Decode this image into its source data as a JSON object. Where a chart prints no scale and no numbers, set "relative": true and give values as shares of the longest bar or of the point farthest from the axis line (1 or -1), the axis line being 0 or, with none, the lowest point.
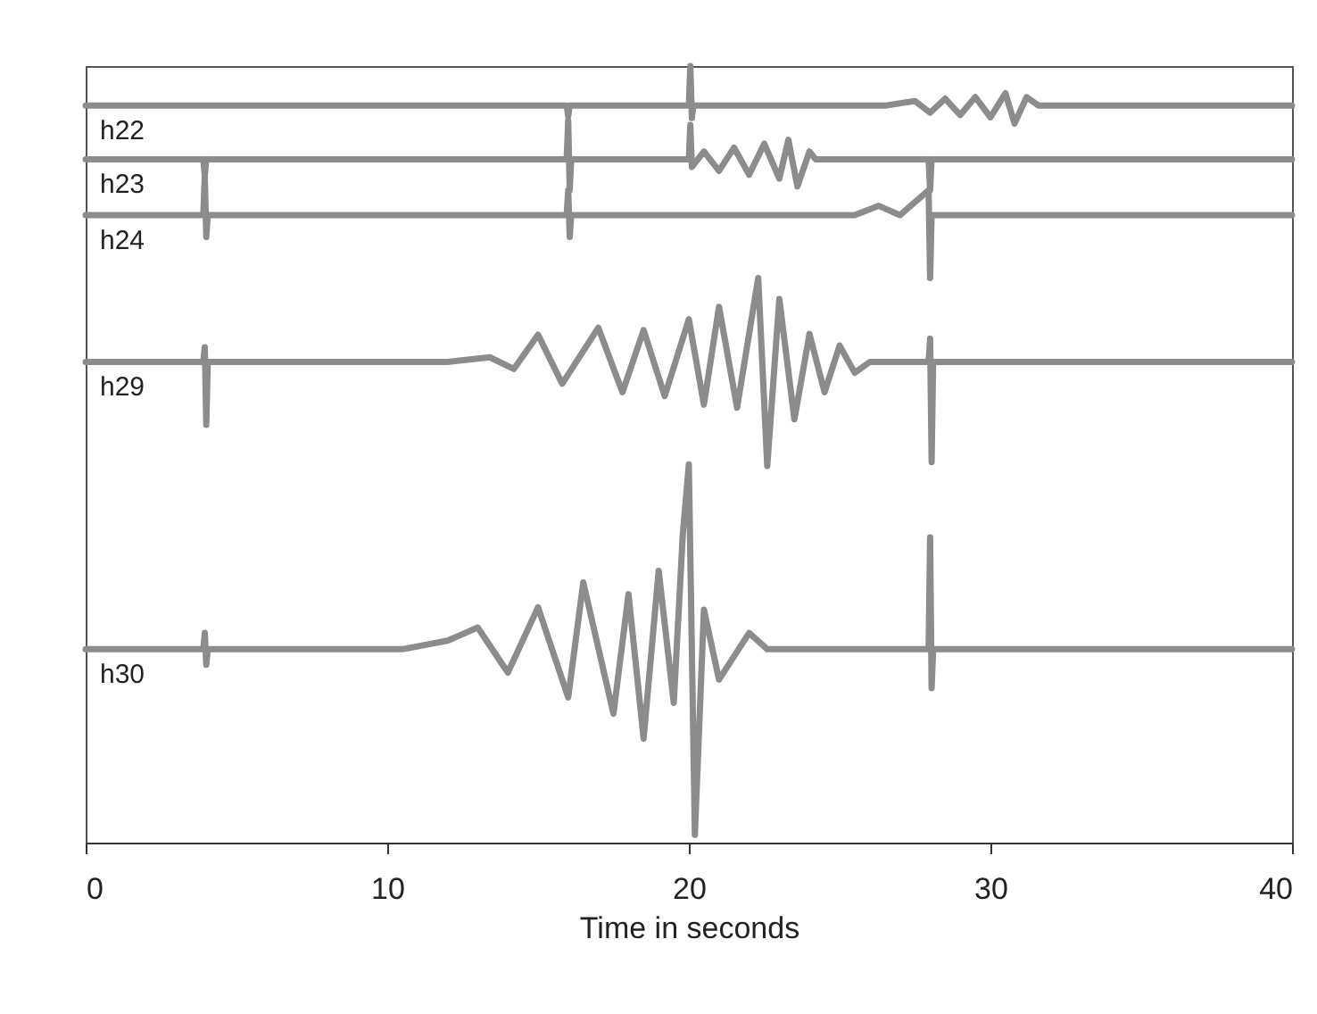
{
  "chart_data": {
    "type": "line",
    "relative": true,
    "xlabel": "Time in seconds",
    "xlim": [
      0,
      40
    ],
    "xticks": [
      0,
      10,
      20,
      30,
      40
    ],
    "grid": false,
    "legend": false,
    "line_style": "solid",
    "marker": "none",
    "series": [
      {
        "name": "h22",
        "color": "#8c8c8c",
        "x": [
          0,
          15.95,
          16,
          16.05,
          20,
          20.05,
          20.1,
          20.15,
          26.5,
          27.5,
          28,
          28.5,
          29,
          29.5,
          30,
          30.5,
          30.8,
          31.2,
          31.6,
          40
        ],
        "values": [
          0.949,
          0.949,
          0.935,
          0.949,
          0.949,
          1.0,
          0.933,
          0.949,
          0.949,
          0.955,
          0.94,
          0.958,
          0.937,
          0.96,
          0.934,
          0.965,
          0.926,
          0.96,
          0.949,
          0.949
        ]
      },
      {
        "name": "h23",
        "color": "#8c8c8c",
        "x": [
          0,
          3.9,
          3.95,
          4.0,
          15.95,
          16,
          16.05,
          16.1,
          20,
          20.05,
          20.1,
          20.5,
          21,
          21.5,
          22,
          22.5,
          23,
          23.3,
          23.6,
          24,
          24.2,
          27.95,
          28,
          28.05,
          40
        ],
        "values": [
          0.88,
          0.88,
          0.859,
          0.88,
          0.88,
          0.93,
          0.84,
          0.88,
          0.88,
          0.924,
          0.87,
          0.89,
          0.865,
          0.895,
          0.86,
          0.9,
          0.855,
          0.905,
          0.845,
          0.89,
          0.88,
          0.88,
          0.84,
          0.88,
          0.88
        ]
      },
      {
        "name": "h24",
        "color": "#8c8c8c",
        "x": [
          0,
          3.9,
          3.95,
          4.0,
          4.05,
          15.95,
          16,
          16.05,
          16.1,
          25.5,
          26.3,
          27,
          27.95,
          28,
          28.05,
          40
        ],
        "values": [
          0.808,
          0.808,
          0.858,
          0.78,
          0.808,
          0.808,
          0.84,
          0.78,
          0.808,
          0.808,
          0.82,
          0.808,
          0.84,
          0.727,
          0.808,
          0.808
        ]
      },
      {
        "name": "h29",
        "color": "#8c8c8c",
        "x": [
          0,
          3.9,
          3.95,
          4.0,
          4.05,
          12,
          13.4,
          14.2,
          15,
          15.8,
          17,
          17.8,
          18.5,
          19.2,
          20,
          20.5,
          21,
          21.6,
          22.3,
          22.6,
          23,
          23.5,
          24,
          24.5,
          25,
          25.5,
          26,
          27.95,
          28,
          28.05,
          28.1,
          40
        ],
        "values": [
          0.619,
          0.619,
          0.638,
          0.538,
          0.619,
          0.619,
          0.625,
          0.61,
          0.654,
          0.591,
          0.663,
          0.58,
          0.66,
          0.575,
          0.674,
          0.564,
          0.69,
          0.56,
          0.727,
          0.485,
          0.7,
          0.545,
          0.655,
          0.58,
          0.64,
          0.605,
          0.619,
          0.619,
          0.649,
          0.49,
          0.619,
          0.619
        ]
      },
      {
        "name": "h30",
        "color": "#8c8c8c",
        "x": [
          0,
          3.9,
          3.95,
          4.0,
          4.05,
          10.5,
          12,
          13,
          14,
          15,
          16,
          16.5,
          17.5,
          18,
          18.5,
          19,
          19.5,
          19.8,
          20,
          20.2,
          20.5,
          21,
          22,
          22.6,
          27.95,
          28,
          28.05,
          28.1,
          40
        ],
        "values": [
          0.249,
          0.249,
          0.27,
          0.229,
          0.249,
          0.249,
          0.26,
          0.277,
          0.219,
          0.303,
          0.187,
          0.335,
          0.166,
          0.32,
          0.134,
          0.35,
          0.18,
          0.397,
          0.487,
          0.01,
          0.3,
          0.21,
          0.27,
          0.249,
          0.249,
          0.393,
          0.199,
          0.249,
          0.249
        ]
      }
    ]
  }
}
